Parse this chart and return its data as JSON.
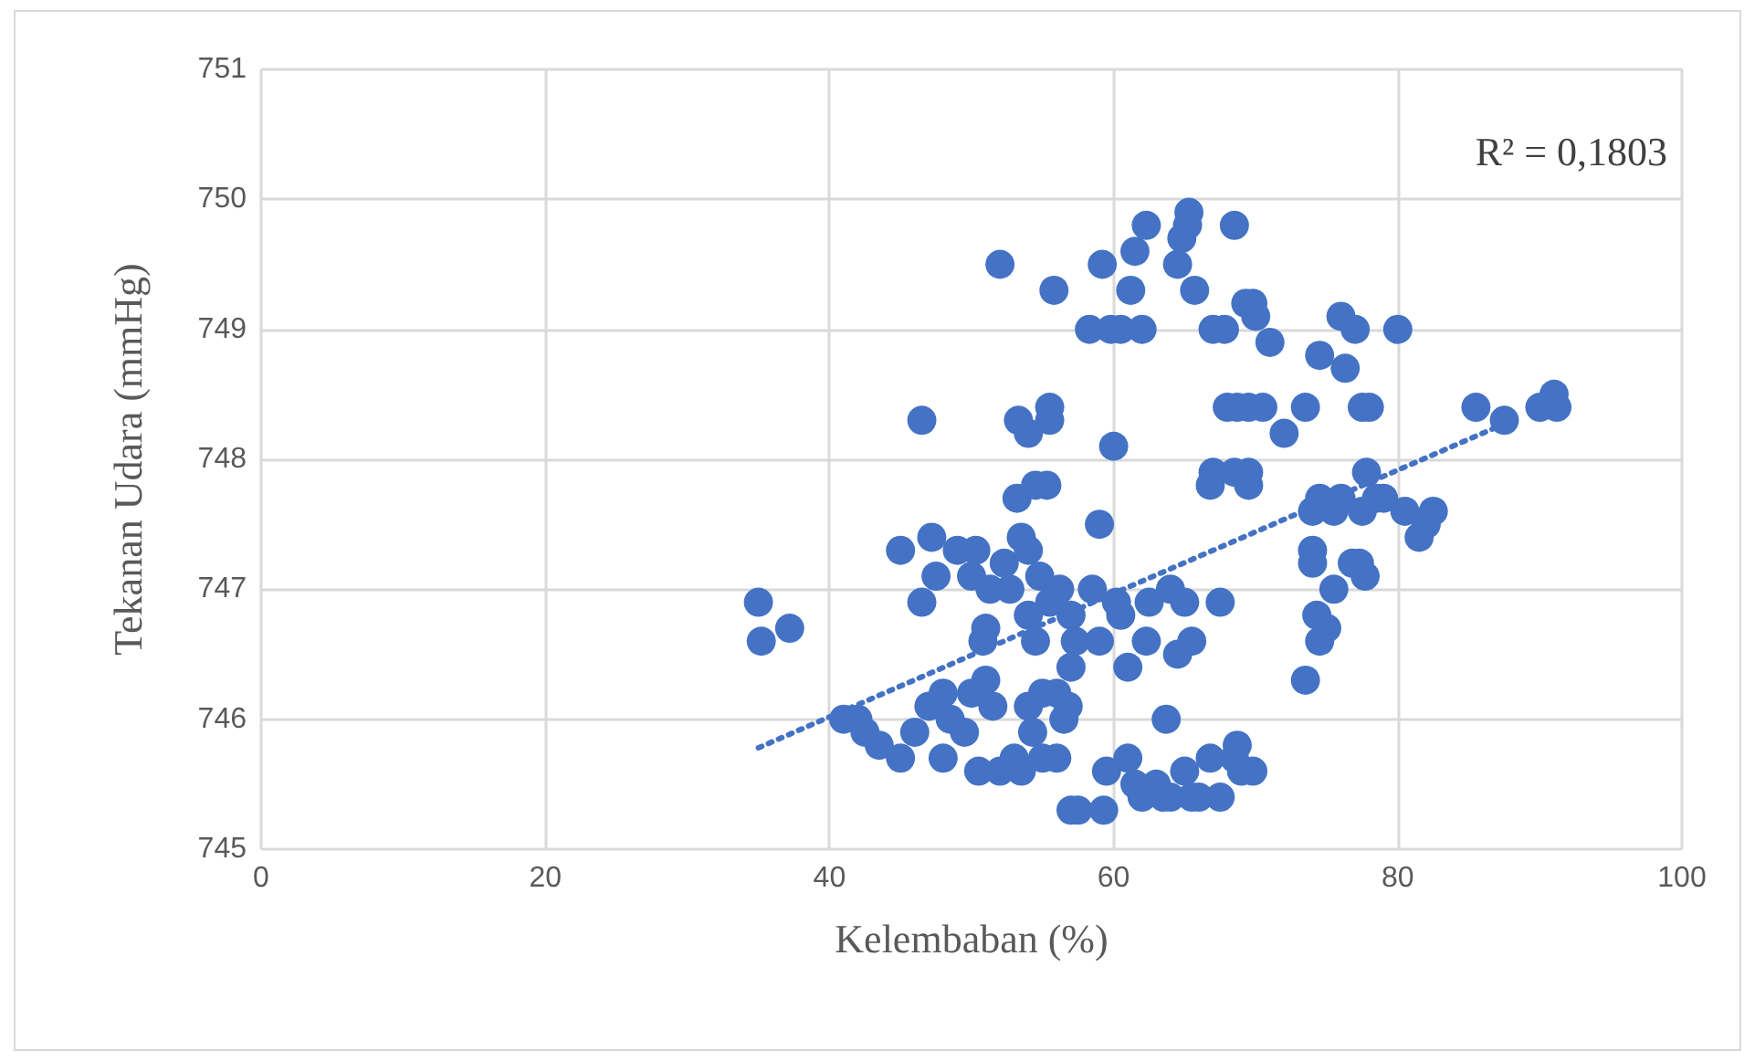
{
  "chart_data": {
    "type": "scatter",
    "xlabel": "Kelembaban (%)",
    "ylabel": "Tekanan Udara (mmHg)",
    "xlim": [
      0,
      100
    ],
    "xticks": [
      0,
      20,
      40,
      60,
      80,
      100
    ],
    "ylim": [
      745,
      751
    ],
    "yticks": [
      745,
      746,
      747,
      748,
      749,
      750,
      751
    ],
    "grid": true,
    "marker": "circle",
    "annotations": [
      "R² = 0,1803"
    ],
    "series": [
      {
        "color": "#4472c4",
        "x": [
          35,
          35.2,
          37.2,
          41,
          42,
          42.5,
          43.5,
          45,
          45,
          46,
          46.5,
          46.5,
          47,
          47.2,
          47.5,
          48,
          48,
          48.5,
          49,
          49.5,
          50,
          50,
          50.3,
          50.5,
          50.8,
          51,
          51,
          51.3,
          51.5,
          52,
          52,
          52.3,
          52.7,
          53,
          53.2,
          53.3,
          53.5,
          53.5,
          54,
          54,
          54,
          54,
          54.3,
          54.5,
          54.5,
          54.8,
          55,
          55,
          55.3,
          55.5,
          55.5,
          55.5,
          55.8,
          56,
          56,
          56.2,
          56.5,
          56.8,
          57,
          57,
          57,
          57.3,
          57.5,
          58.3,
          58.5,
          59,
          59,
          59.2,
          59.5,
          59.3,
          59.8,
          60,
          60.2,
          60.5,
          60.5,
          61,
          61,
          61.2,
          61.5,
          61.5,
          62,
          62,
          62.3,
          62.3,
          62.5,
          63,
          63.5,
          63.7,
          64,
          64,
          64.5,
          64.5,
          64.8,
          65,
          65,
          65.2,
          65.3,
          65.5,
          65.5,
          65.7,
          66,
          66.8,
          66.8,
          67,
          67,
          67.5,
          67.5,
          67.8,
          68,
          68.5,
          68.5,
          68.5,
          68.7,
          68.7,
          69,
          69.3,
          69.5,
          69.5,
          69.5,
          69.8,
          69.8,
          70,
          70.5,
          71,
          72,
          73.5,
          73.5,
          74,
          74,
          74,
          74.3,
          74.5,
          74.5,
          74.5,
          75,
          75.5,
          75.5,
          76,
          76,
          76.3,
          76.8,
          77,
          77.3,
          77.5,
          77.5,
          77.7,
          77.8,
          78,
          78.5,
          79,
          80,
          80.5,
          81.5,
          82,
          82.5,
          85.5,
          87.5,
          90,
          91,
          91.2
        ],
        "values": [
          746.9,
          746.6,
          746.7,
          746,
          746,
          745.9,
          745.8,
          745.7,
          747.3,
          745.9,
          746.9,
          748.3,
          746.1,
          747.4,
          747.1,
          745.7,
          746.2,
          746,
          747.3,
          745.9,
          746.2,
          747.1,
          747.3,
          745.6,
          746.6,
          746.3,
          746.7,
          747,
          746.1,
          745.6,
          749.5,
          747.2,
          747,
          745.7,
          747.7,
          748.3,
          747.4,
          745.6,
          746.1,
          748.2,
          747.3,
          746.8,
          745.9,
          747.8,
          746.6,
          747.1,
          746.2,
          745.7,
          747.8,
          748.4,
          748.3,
          746.9,
          749.3,
          746.2,
          745.7,
          747,
          746,
          746.1,
          746.4,
          746.8,
          745.3,
          746.6,
          745.3,
          749,
          747,
          747.5,
          746.6,
          749.5,
          745.6,
          745.3,
          749,
          748.1,
          746.9,
          746.8,
          749,
          745.7,
          746.4,
          749.3,
          749.6,
          745.5,
          749,
          745.4,
          749.8,
          746.6,
          746.9,
          745.5,
          745.4,
          746,
          747,
          745.4,
          749.5,
          746.5,
          749.7,
          745.6,
          746.9,
          749.8,
          749.9,
          746.6,
          745.4,
          749.3,
          745.4,
          745.7,
          747.8,
          747.9,
          749,
          746.9,
          745.4,
          749,
          748.4,
          747.9,
          749.8,
          745.7,
          745.8,
          748.4,
          745.6,
          749.2,
          748.4,
          747.8,
          747.9,
          749.2,
          745.6,
          749.1,
          748.4,
          748.9,
          748.2,
          746.3,
          748.4,
          747.2,
          747.3,
          747.6,
          746.8,
          748.8,
          746.6,
          747.7,
          746.7,
          747.6,
          747,
          749.1,
          747.7,
          748.7,
          747.2,
          749,
          747.2,
          748.4,
          747.6,
          747.1,
          747.9,
          748.4,
          747.7,
          747.7,
          749,
          747.6,
          747.4,
          747.5,
          747.6,
          748.4,
          748.3,
          748.4,
          748.5,
          748.4
        ]
      },
      {
        "type": "line",
        "color": "#4472c4",
        "marker": "none",
        "line_style": "dotted",
        "x": [
          35,
          88.7
        ],
        "values": [
          745.78,
          748.33
        ]
      }
    ]
  }
}
